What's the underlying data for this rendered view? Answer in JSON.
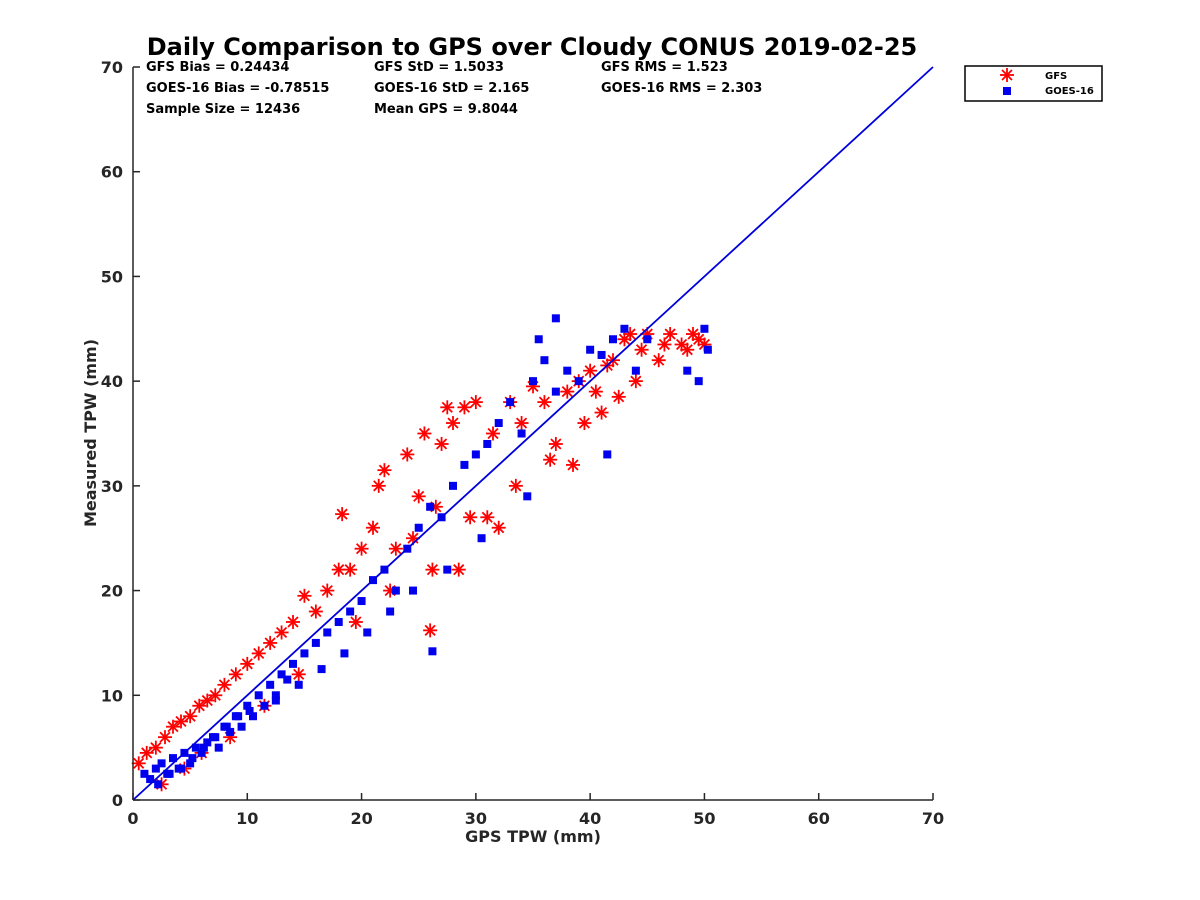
{
  "chart_data": {
    "type": "scatter",
    "title": "Daily Comparison to GPS over Cloudy CONUS 2019-02-25",
    "xlabel": "GPS TPW (mm)",
    "ylabel": "Measured TPW (mm)",
    "xlim": [
      0,
      70
    ],
    "ylim": [
      0,
      70
    ],
    "xticks": [
      "0",
      "10",
      "20",
      "30",
      "40",
      "50",
      "60",
      "70"
    ],
    "yticks": [
      "0",
      "10",
      "20",
      "30",
      "40",
      "50",
      "60",
      "70"
    ],
    "grid": false,
    "legend_position": "outside-top-right",
    "stats": [
      [
        "GFS Bias = 0.24434",
        "GFS StD = 1.5033",
        "GFS RMS = 1.523"
      ],
      [
        "GOES-16 Bias = -0.78515",
        "GOES-16 StD = 2.165",
        "GOES-16 RMS = 2.303"
      ],
      [
        "Sample Size = 12436",
        "Mean GPS = 9.8044"
      ]
    ],
    "reference_line": {
      "x": [
        0,
        70
      ],
      "y": [
        0,
        70
      ],
      "color": "#0000dd"
    },
    "series": [
      {
        "name": "GFS",
        "marker": "asterisk",
        "color": "#ff0000",
        "x": [
          0.5,
          1.2,
          2.0,
          2.8,
          3.5,
          4.2,
          5.0,
          5.8,
          6.5,
          7.2,
          8.0,
          9.0,
          10.0,
          11.0,
          12.0,
          13.0,
          14.0,
          15.0,
          16.0,
          17.0,
          18.0,
          18.3,
          19.0,
          20.0,
          21.0,
          21.5,
          22.0,
          23.0,
          24.0,
          24.5,
          25.0,
          25.5,
          26.0,
          26.5,
          27.0,
          27.5,
          28.0,
          28.5,
          29.0,
          30.0,
          31.0,
          31.5,
          32.0,
          33.0,
          34.0,
          35.0,
          36.0,
          37.0,
          38.0,
          38.5,
          39.0,
          40.0,
          40.5,
          41.0,
          41.5,
          42.0,
          43.0,
          43.5,
          44.0,
          44.5,
          45.0,
          46.0,
          46.5,
          47.0,
          48.0,
          48.5,
          49.0,
          49.5,
          50.0,
          2.5,
          4.5,
          6.0,
          8.5,
          11.5,
          14.5,
          19.5,
          22.5,
          26.2,
          29.5,
          33.5,
          36.5,
          39.5,
          42.5
        ],
        "y": [
          3.5,
          4.5,
          5.0,
          6.0,
          7.0,
          7.5,
          8.0,
          9.0,
          9.5,
          10.0,
          11.0,
          12.0,
          13.0,
          14.0,
          15.0,
          16.0,
          17.0,
          19.5,
          18.0,
          20.0,
          22.0,
          27.3,
          22.0,
          24.0,
          26.0,
          30.0,
          31.5,
          24.0,
          33.0,
          25.0,
          29.0,
          35.0,
          16.2,
          28.0,
          34.0,
          37.5,
          36.0,
          22.0,
          37.5,
          38.0,
          27.0,
          35.0,
          26.0,
          38.0,
          36.0,
          39.5,
          38.0,
          34.0,
          39.0,
          32.0,
          40.0,
          41.0,
          39.0,
          37.0,
          41.5,
          42.0,
          44.0,
          44.5,
          40.0,
          43.0,
          44.5,
          42.0,
          43.5,
          44.5,
          43.5,
          43.0,
          44.5,
          44.0,
          43.5,
          1.5,
          3.0,
          4.5,
          6.0,
          9.0,
          12.0,
          17.0,
          20.0,
          22.0,
          27.0,
          30.0,
          32.5,
          36.0,
          38.5
        ]
      },
      {
        "name": "GOES-16",
        "marker": "square",
        "color": "#0000ee",
        "x": [
          1.0,
          1.5,
          2.0,
          2.5,
          3.0,
          3.5,
          4.0,
          4.5,
          5.0,
          5.5,
          6.0,
          6.5,
          7.0,
          7.5,
          8.0,
          8.5,
          9.0,
          9.5,
          10.0,
          10.5,
          11.0,
          11.5,
          12.0,
          12.5,
          13.0,
          13.5,
          14.0,
          15.0,
          16.0,
          17.0,
          18.0,
          19.0,
          20.0,
          21.0,
          22.0,
          23.0,
          24.0,
          25.0,
          26.0,
          27.0,
          28.0,
          29.0,
          30.0,
          31.0,
          32.0,
          33.0,
          34.0,
          35.0,
          35.5,
          36.0,
          37.0,
          38.0,
          39.0,
          40.0,
          41.0,
          42.0,
          43.0,
          44.0,
          45.0,
          48.5,
          49.5,
          50.0,
          50.3,
          26.2,
          37.0,
          41.5,
          2.2,
          3.2,
          4.2,
          5.2,
          6.2,
          7.2,
          8.2,
          9.2,
          10.2,
          12.5,
          14.5,
          16.5,
          18.5,
          20.5,
          22.5,
          24.5,
          27.5,
          30.5,
          34.5
        ],
        "y": [
          2.5,
          2.0,
          3.0,
          3.5,
          2.5,
          4.0,
          3.0,
          4.5,
          3.5,
          5.0,
          4.5,
          5.5,
          6.0,
          5.0,
          7.0,
          6.5,
          8.0,
          7.0,
          9.0,
          8.0,
          10.0,
          9.0,
          11.0,
          10.0,
          12.0,
          11.5,
          13.0,
          14.0,
          15.0,
          16.0,
          17.0,
          18.0,
          19.0,
          21.0,
          22.0,
          20.0,
          24.0,
          26.0,
          28.0,
          27.0,
          30.0,
          32.0,
          33.0,
          34.0,
          36.0,
          38.0,
          35.0,
          40.0,
          44.0,
          42.0,
          39.0,
          41.0,
          40.0,
          43.0,
          42.5,
          44.0,
          45.0,
          41.0,
          44.0,
          41.0,
          40.0,
          45.0,
          43.0,
          14.2,
          46.0,
          33.0,
          1.5,
          2.5,
          3.0,
          4.0,
          5.0,
          6.0,
          7.0,
          8.0,
          8.5,
          9.5,
          11.0,
          12.5,
          14.0,
          16.0,
          18.0,
          20.0,
          22.0,
          25.0,
          29.0
        ]
      }
    ]
  }
}
